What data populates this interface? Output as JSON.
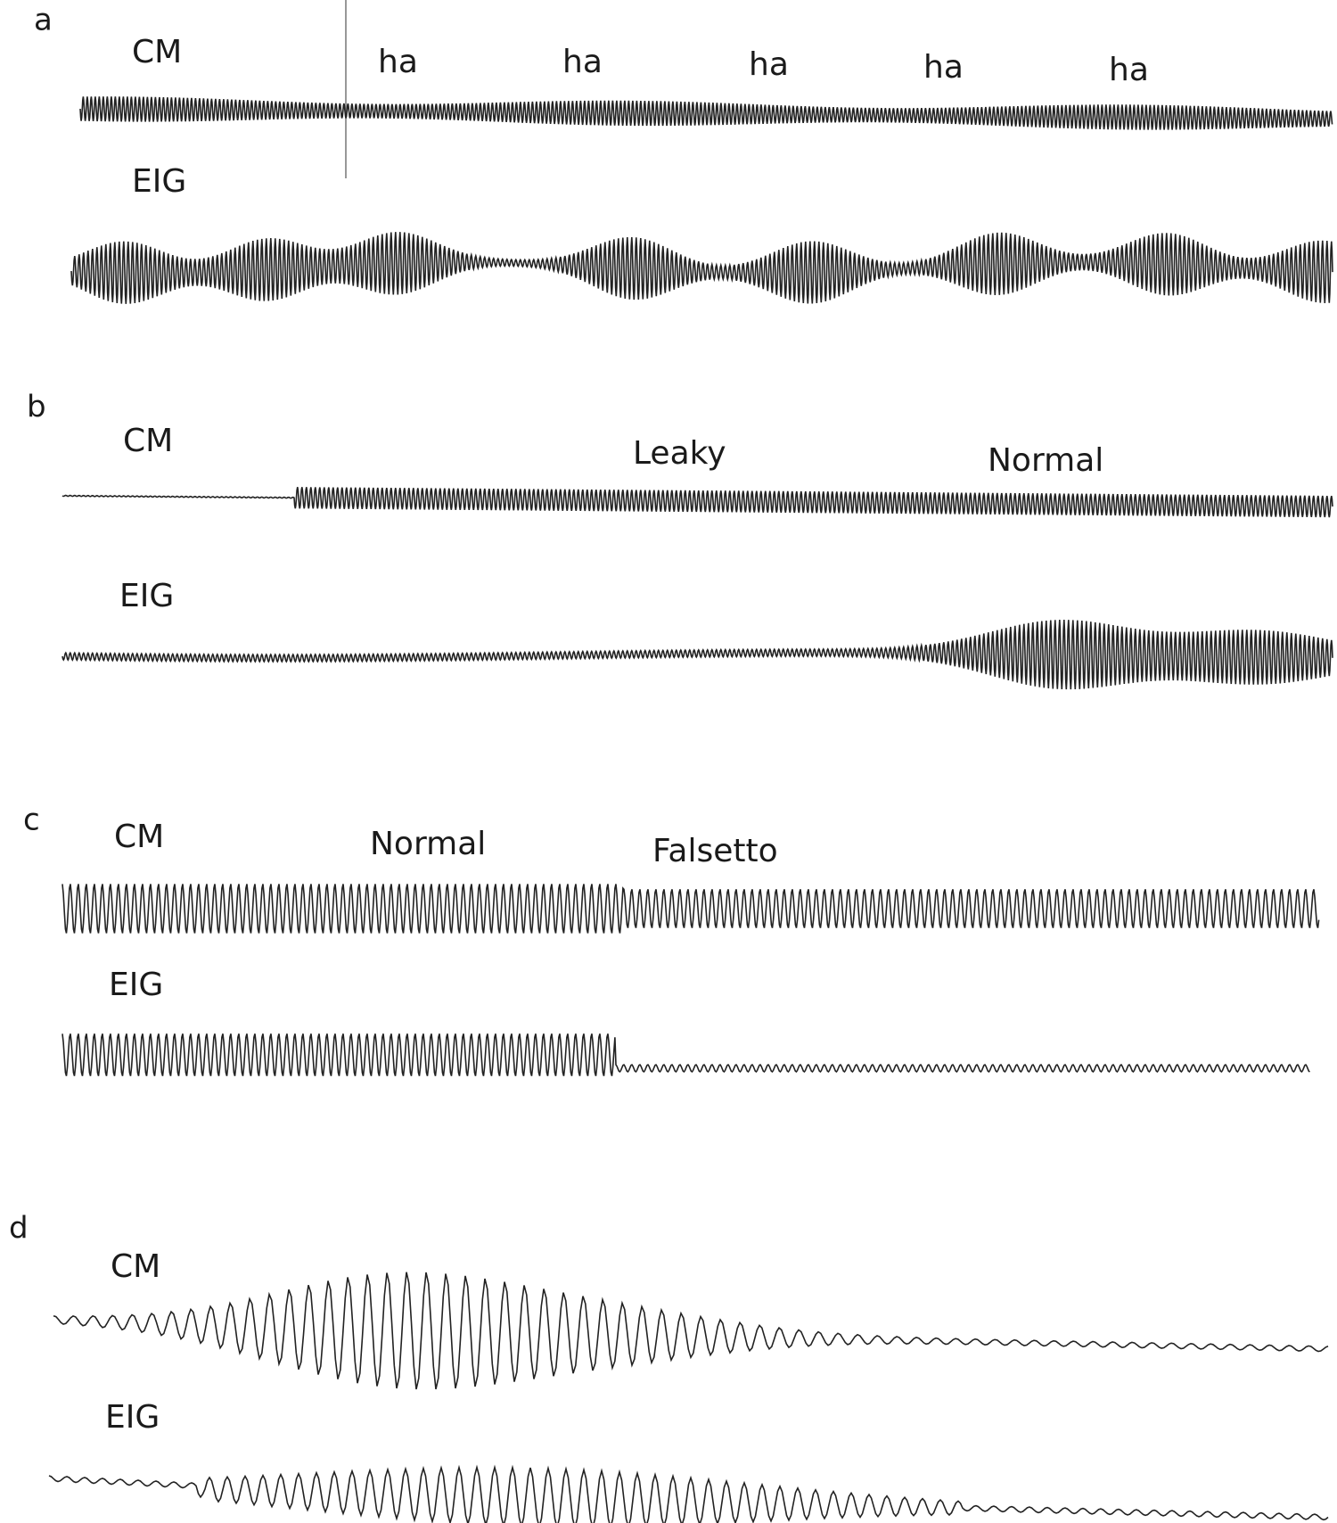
{
  "panels": [
    {
      "label": "a",
      "traces": [
        {
          "label": "CM"
        },
        {
          "label": "EIG"
        }
      ],
      "annotations": [
        "ha",
        "ha",
        "ha",
        "ha",
        "ha"
      ]
    },
    {
      "label": "b",
      "traces": [
        {
          "label": "CM"
        },
        {
          "label": "EIG"
        }
      ],
      "annotations": [
        "Leaky",
        "Normal"
      ]
    },
    {
      "label": "c",
      "traces": [
        {
          "label": "CM"
        },
        {
          "label": "EIG"
        }
      ],
      "annotations": [
        "Normal",
        "Falsetto"
      ]
    },
    {
      "label": "d",
      "traces": [
        {
          "label": "CM"
        },
        {
          "label": "EIG"
        }
      ]
    }
  ]
}
